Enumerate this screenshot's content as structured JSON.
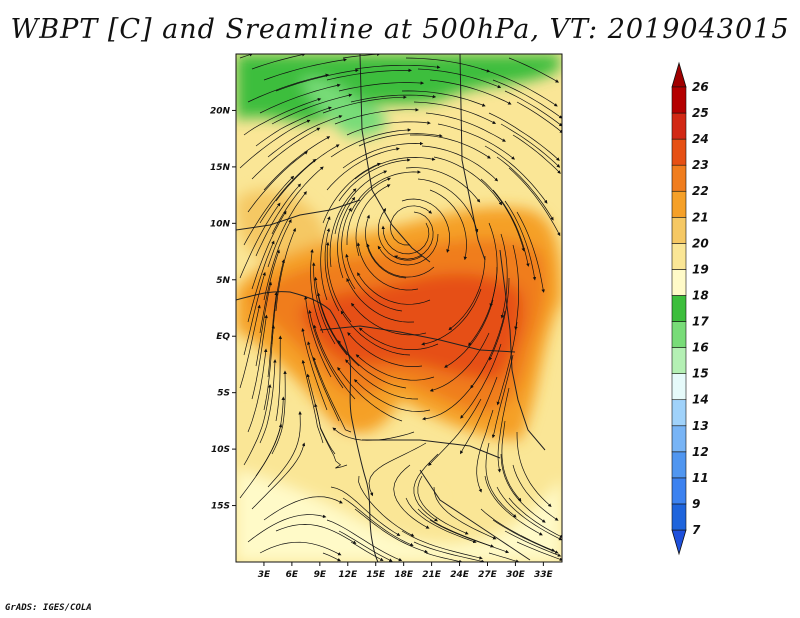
{
  "title": "WBPT [C] and Sreamline at 500hPa, VT: 2019043015",
  "credit": "GrADS: IGES/COLA",
  "map": {
    "lon_range": [
      0,
      35
    ],
    "lat_range": [
      -20,
      25
    ],
    "lon_ticks": [
      {
        "value": 3,
        "label": "3E"
      },
      {
        "value": 6,
        "label": "6E"
      },
      {
        "value": 9,
        "label": "9E"
      },
      {
        "value": 12,
        "label": "12E"
      },
      {
        "value": 15,
        "label": "15E"
      },
      {
        "value": 18,
        "label": "18E"
      },
      {
        "value": 21,
        "label": "21E"
      },
      {
        "value": 24,
        "label": "24E"
      },
      {
        "value": 27,
        "label": "27E"
      },
      {
        "value": 30,
        "label": "30E"
      },
      {
        "value": 33,
        "label": "33E"
      }
    ],
    "lat_ticks": [
      {
        "value": 20,
        "label": "20N"
      },
      {
        "value": 15,
        "label": "15N"
      },
      {
        "value": 10,
        "label": "10N"
      },
      {
        "value": 5,
        "label": "5N"
      },
      {
        "value": 0,
        "label": "EQ"
      },
      {
        "value": -5,
        "label": "5S"
      },
      {
        "value": -10,
        "label": "10S"
      },
      {
        "value": -15,
        "label": "15S"
      }
    ]
  },
  "colorbar": {
    "labels": [
      "7",
      "9",
      "11",
      "12",
      "13",
      "14",
      "15",
      "16",
      "17",
      "18",
      "19",
      "20",
      "21",
      "22",
      "23",
      "24",
      "25",
      "26"
    ],
    "colors": [
      "#1e64dc",
      "#3c82f0",
      "#5096f0",
      "#78b4f5",
      "#a0d2fa",
      "#e6fafa",
      "#b4f0b4",
      "#78dc78",
      "#3cbe3c",
      "#fffac8",
      "#fae696",
      "#f5c864",
      "#f5a028",
      "#f07d1e",
      "#e65014",
      "#d22814",
      "#b40000"
    ],
    "under_color": "#1e50dc",
    "over_color": "#a00000"
  }
}
